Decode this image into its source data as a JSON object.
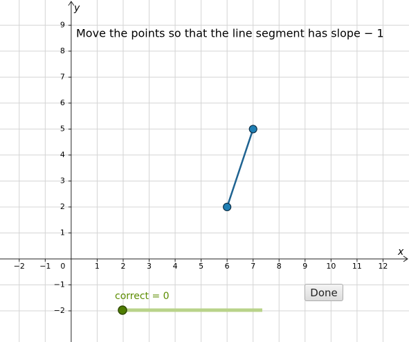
{
  "instruction": "Move the points so that the line segment has slope  − 1",
  "axes": {
    "x_label": "x",
    "y_label": "y",
    "xlim": [
      -2.74,
      13.0
    ],
    "ylim": [
      -3.2,
      9.97
    ],
    "xticks": [
      {
        "value": -2,
        "label": "−2"
      },
      {
        "value": -1,
        "label": "−1"
      },
      0,
      1,
      2,
      3,
      4,
      5,
      6,
      7,
      8,
      9,
      10,
      11,
      12
    ],
    "yticks": [
      {
        "value": -2,
        "label": "−2"
      },
      {
        "value": -1,
        "label": "−1"
      },
      1,
      2,
      3,
      4,
      5,
      6,
      7,
      8,
      9
    ],
    "grid": true
  },
  "segment": {
    "x": [
      6,
      7
    ],
    "y": [
      2,
      5
    ],
    "color": "#1f6391",
    "point_color": "#1f7fb4"
  },
  "slider": {
    "label": "correct = 0",
    "color": "#5b8c00"
  },
  "button": "Done"
}
